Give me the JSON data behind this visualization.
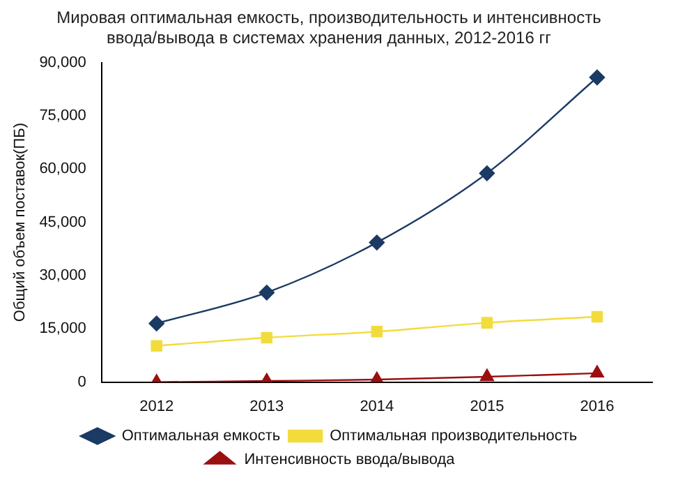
{
  "chart_data": {
    "type": "line",
    "title": "Мировая оптимальная емкость, производительность и интенсивность\nввода/вывода в системах хранения данных, 2012-2016 гг",
    "ylabel": "Общий объем поставок(ПБ)",
    "categories": [
      "2012",
      "2013",
      "2014",
      "2015",
      "2016"
    ],
    "series": [
      {
        "name": "Оптимальная емкость",
        "color": "#1b3a64",
        "marker": "diamond",
        "values": [
          16500,
          25200,
          39300,
          58800,
          85800
        ]
      },
      {
        "name": "Оптимальная производительность",
        "color": "#f2dc3c",
        "marker": "square",
        "values": [
          10200,
          12500,
          14200,
          16700,
          18400
        ]
      },
      {
        "name": "Интенсивность ввода/вывода",
        "color": "#9a1010",
        "marker": "triangle",
        "values": [
          0,
          300,
          700,
          1500,
          2500
        ]
      }
    ],
    "ylim": [
      0,
      90000
    ],
    "yticks": [
      0,
      {
        "value": 15000,
        "label": "15,000"
      },
      {
        "value": 30000,
        "label": "30,000"
      },
      {
        "value": 45000,
        "label": "45,000"
      },
      {
        "value": 60000,
        "label": "60,000"
      },
      {
        "value": 75000,
        "label": "75,000"
      },
      {
        "value": 90000,
        "label": "90,000"
      }
    ],
    "grid": false,
    "legend": "bottom"
  }
}
